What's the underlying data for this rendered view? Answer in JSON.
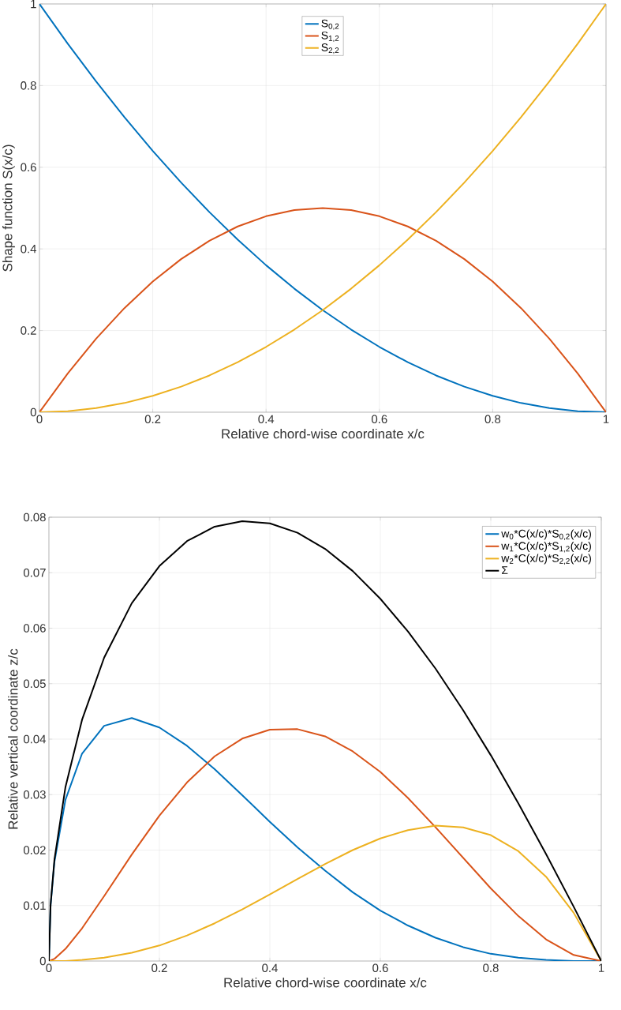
{
  "chart_data": [
    {
      "type": "line",
      "xlabel": "Relative chord-wise coordinate  x/c",
      "ylabel": "Shape function  S(x/c)",
      "x": [
        0,
        0.05,
        0.1,
        0.15,
        0.2,
        0.25,
        0.3,
        0.35,
        0.4,
        0.45,
        0.5,
        0.55,
        0.6,
        0.65,
        0.7,
        0.75,
        0.8,
        0.85,
        0.9,
        0.95,
        1
      ],
      "series": [
        {
          "name": "S$_{0,2}$",
          "color": "#0072bd",
          "values": [
            1,
            0.9025,
            0.81,
            0.7225,
            0.64,
            0.5625,
            0.49,
            0.4225,
            0.36,
            0.3025,
            0.25,
            0.2025,
            0.16,
            0.1225,
            0.09,
            0.0625,
            0.04,
            0.0225,
            0.01,
            0.0025,
            0
          ]
        },
        {
          "name": "S$_{1,2}$",
          "color": "#d95319",
          "values": [
            0,
            0.095,
            0.18,
            0.255,
            0.32,
            0.375,
            0.42,
            0.455,
            0.48,
            0.495,
            0.5,
            0.495,
            0.48,
            0.455,
            0.42,
            0.375,
            0.32,
            0.255,
            0.18,
            0.095,
            0
          ]
        },
        {
          "name": "S$_{2,2}$",
          "color": "#edb120",
          "values": [
            0,
            0.0025,
            0.01,
            0.0225,
            0.04,
            0.0625,
            0.09,
            0.1225,
            0.16,
            0.2025,
            0.25,
            0.3025,
            0.36,
            0.4225,
            0.49,
            0.5625,
            0.64,
            0.7225,
            0.81,
            0.9025,
            1
          ]
        }
      ],
      "xlim": [
        0,
        1
      ],
      "ylim": [
        0,
        1
      ],
      "xticks": [
        0,
        0.2,
        0.4,
        0.6,
        0.8,
        1
      ],
      "yticks": [
        0,
        0.2,
        0.4,
        0.6,
        0.8,
        1
      ],
      "grid": true,
      "legend": "top",
      "line_style": "solid",
      "marker": "none"
    },
    {
      "type": "line",
      "xlabel": "Relative chord-wise coordinate  x/c",
      "ylabel": "Relative vertical coordinate  z/c",
      "x": [
        0,
        0.003,
        0.01,
        0.03,
        0.06,
        0.1,
        0.15,
        0.2,
        0.25,
        0.3,
        0.35,
        0.4,
        0.45,
        0.5,
        0.55,
        0.6,
        0.65,
        0.7,
        0.75,
        0.8,
        0.85,
        0.9,
        0.95,
        1
      ],
      "series": [
        {
          "name": "w$_{0}$*C(x/c)*S$_{0,2}$(x/c)",
          "color": "#0072bd",
          "values": [
            0,
            0.01,
            0.0179,
            0.0291,
            0.0374,
            0.0424,
            0.0438,
            0.0421,
            0.0388,
            0.0346,
            0.0299,
            0.0251,
            0.0205,
            0.0163,
            0.0124,
            0.0091,
            0.0064,
            0.0042,
            0.0025,
            0.0013,
            0.0006,
            0.0002,
            0.0,
            0
          ]
        },
        {
          "name": "w$_{1}$*C(x/c)*S$_{1,2}$(x/c)",
          "color": "#d95319",
          "values": [
            0,
            0.0001,
            0.0004,
            0.0022,
            0.0059,
            0.0117,
            0.0192,
            0.0262,
            0.0322,
            0.0369,
            0.0401,
            0.0417,
            0.0418,
            0.0405,
            0.0378,
            0.0341,
            0.0294,
            0.0241,
            0.0186,
            0.0131,
            0.0081,
            0.0039,
            0.0011,
            0
          ]
        },
        {
          "name": "w$_{2}$*C(x/c)*S$_{2,2}$(x/c)",
          "color": "#edb120",
          "values": [
            0,
            0,
            0.0,
            0.0,
            0.0002,
            0.0006,
            0.0015,
            0.0028,
            0.0046,
            0.0068,
            0.0093,
            0.012,
            0.0148,
            0.0175,
            0.02,
            0.0221,
            0.0236,
            0.0244,
            0.0241,
            0.0227,
            0.0198,
            0.0152,
            0.0087,
            0
          ]
        },
        {
          "name": "Σ",
          "color": "#000000",
          "values": [
            0,
            0.0101,
            0.0183,
            0.0314,
            0.0435,
            0.0547,
            0.0645,
            0.0712,
            0.0757,
            0.0783,
            0.0793,
            0.0789,
            0.0772,
            0.0743,
            0.0703,
            0.0653,
            0.0594,
            0.0527,
            0.0452,
            0.0371,
            0.0284,
            0.0193,
            0.0098,
            0
          ]
        }
      ],
      "xlim": [
        0,
        1
      ],
      "ylim": [
        0,
        0.08
      ],
      "xticks": [
        0,
        0.2,
        0.4,
        0.6,
        0.8,
        1
      ],
      "yticks": [
        0,
        0.01,
        0.02,
        0.03,
        0.04,
        0.05,
        0.06,
        0.07,
        0.08
      ],
      "grid": true,
      "legend": "top right",
      "line_style": "solid",
      "marker": "none"
    }
  ]
}
